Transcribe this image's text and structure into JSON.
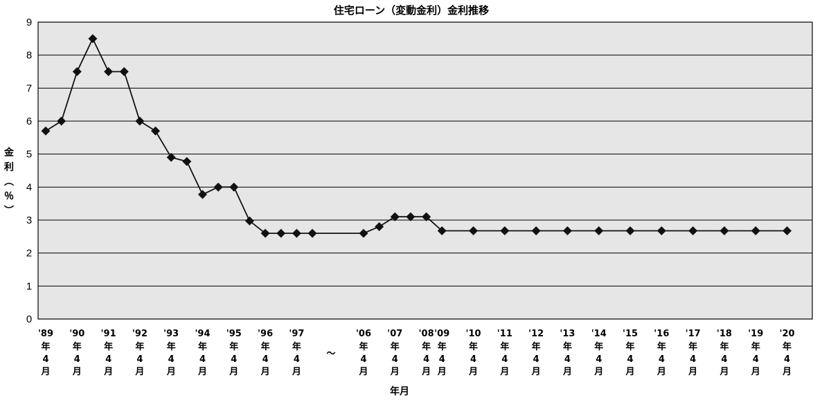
{
  "chart_data": {
    "type": "line",
    "title": "住宅ローン（変動金利）金利推移",
    "xlabel": "年月",
    "ylabel": "金利（％）",
    "ylim": [
      0,
      9
    ],
    "y_ticks": [
      0,
      1,
      2,
      3,
      4,
      5,
      6,
      7,
      8,
      9
    ],
    "grid": true,
    "tick_suffix_lines": [
      "年",
      "4",
      "月"
    ],
    "break_symbol": "～",
    "x_tick_labels": [
      "'89",
      "'90",
      "'91",
      "'92",
      "'93",
      "'94",
      "'95",
      "'96",
      "'97",
      "'06",
      "'07",
      "'08",
      "'09",
      "'10",
      "'11",
      "'12",
      "'13",
      "'14",
      "'15",
      "'16",
      "'17",
      "'18",
      "'19",
      "'20"
    ],
    "series": [
      {
        "values": [
          5.7,
          6.0,
          7.5,
          8.5,
          7.5,
          7.5,
          6.0,
          5.7,
          4.9,
          4.775,
          3.775,
          4.0,
          4.0,
          2.975,
          2.6,
          2.6,
          2.6,
          2.6,
          2.6,
          2.8,
          3.1,
          3.1,
          3.1,
          2.675,
          2.675,
          2.675,
          2.675,
          2.675,
          2.675,
          2.675,
          2.675,
          2.675,
          2.675,
          2.675,
          2.675
        ]
      }
    ]
  }
}
